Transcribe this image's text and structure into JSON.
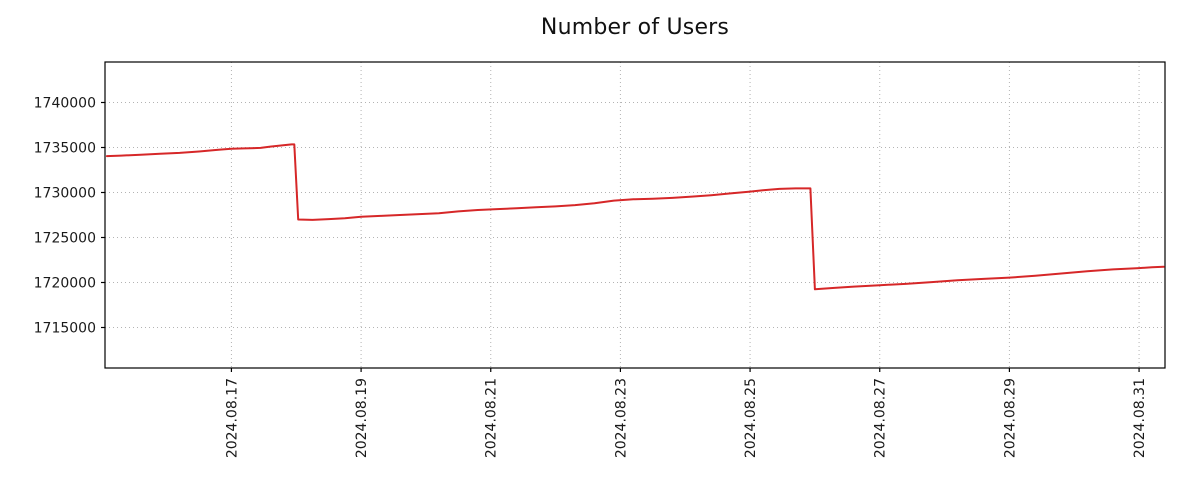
{
  "chart_data": {
    "type": "line",
    "title": "Number of Users",
    "xlabel": "",
    "ylabel": "",
    "legend": "none",
    "grid": "dotted",
    "line_color": "#d62728",
    "grid_color": "#b3b3b3",
    "border_color": "#000000",
    "x_axis_note": "dates in August 2024, x values are fractional day-of-month",
    "xlim": [
      15.05,
      31.4
    ],
    "ylim": [
      1710500,
      1744500
    ],
    "xticks": [
      {
        "value": 17,
        "label": "2024.08.17"
      },
      {
        "value": 19,
        "label": "2024.08.19"
      },
      {
        "value": 21,
        "label": "2024.08.21"
      },
      {
        "value": 23,
        "label": "2024.08.23"
      },
      {
        "value": 25,
        "label": "2024.08.25"
      },
      {
        "value": 27,
        "label": "2024.08.27"
      },
      {
        "value": 29,
        "label": "2024.08.29"
      },
      {
        "value": 31,
        "label": "2024.08.31"
      }
    ],
    "yticks": [
      {
        "value": 1715000,
        "label": "1715000"
      },
      {
        "value": 1720000,
        "label": "1720000"
      },
      {
        "value": 1725000,
        "label": "1725000"
      },
      {
        "value": 1730000,
        "label": "1730000"
      },
      {
        "value": 1735000,
        "label": "1735000"
      },
      {
        "value": 1740000,
        "label": "1740000"
      }
    ],
    "series": [
      {
        "name": "Number of Users",
        "color": "#d62728",
        "points": [
          [
            15.08,
            1734050
          ],
          [
            15.3,
            1734100
          ],
          [
            15.6,
            1734200
          ],
          [
            15.9,
            1734300
          ],
          [
            16.2,
            1734400
          ],
          [
            16.5,
            1734550
          ],
          [
            16.8,
            1734750
          ],
          [
            17.0,
            1734850
          ],
          [
            17.2,
            1734900
          ],
          [
            17.45,
            1734950
          ],
          [
            17.6,
            1735100
          ],
          [
            17.8,
            1735250
          ],
          [
            17.93,
            1735350
          ],
          [
            17.97,
            1735350
          ],
          [
            18.03,
            1727000
          ],
          [
            18.25,
            1726950
          ],
          [
            18.5,
            1727050
          ],
          [
            18.75,
            1727150
          ],
          [
            19.0,
            1727300
          ],
          [
            19.3,
            1727400
          ],
          [
            19.6,
            1727500
          ],
          [
            19.9,
            1727600
          ],
          [
            20.2,
            1727700
          ],
          [
            20.5,
            1727900
          ],
          [
            20.8,
            1728050
          ],
          [
            21.1,
            1728150
          ],
          [
            21.4,
            1728250
          ],
          [
            21.7,
            1728350
          ],
          [
            22.0,
            1728450
          ],
          [
            22.3,
            1728600
          ],
          [
            22.6,
            1728800
          ],
          [
            22.9,
            1729100
          ],
          [
            23.2,
            1729250
          ],
          [
            23.5,
            1729300
          ],
          [
            23.8,
            1729400
          ],
          [
            24.1,
            1729550
          ],
          [
            24.4,
            1729700
          ],
          [
            24.7,
            1729900
          ],
          [
            25.0,
            1730100
          ],
          [
            25.2,
            1730250
          ],
          [
            25.45,
            1730400
          ],
          [
            25.7,
            1730450
          ],
          [
            25.93,
            1730450
          ],
          [
            26.0,
            1719250
          ],
          [
            26.3,
            1719400
          ],
          [
            26.6,
            1719550
          ],
          [
            27.0,
            1719700
          ],
          [
            27.4,
            1719850
          ],
          [
            27.8,
            1720050
          ],
          [
            28.2,
            1720250
          ],
          [
            28.6,
            1720400
          ],
          [
            29.0,
            1720550
          ],
          [
            29.4,
            1720750
          ],
          [
            29.8,
            1721000
          ],
          [
            30.2,
            1721250
          ],
          [
            30.6,
            1721450
          ],
          [
            31.0,
            1721600
          ],
          [
            31.2,
            1721700
          ],
          [
            31.38,
            1721750
          ]
        ]
      }
    ]
  }
}
